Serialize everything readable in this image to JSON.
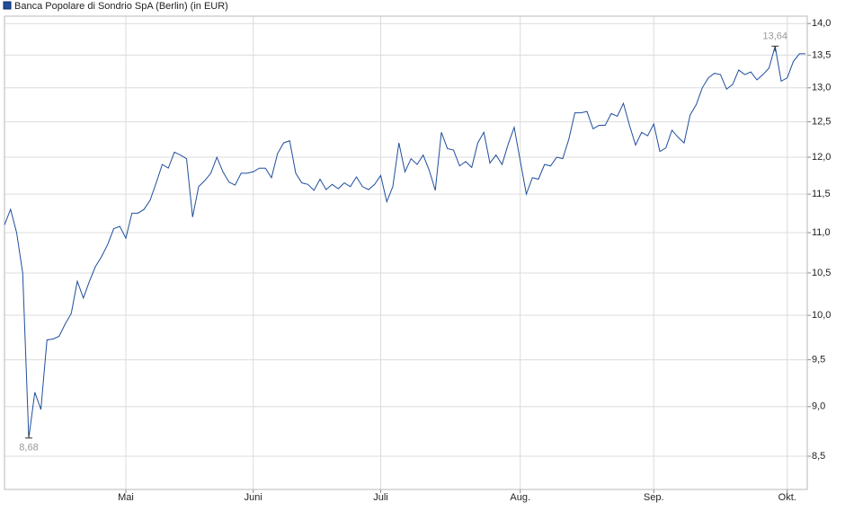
{
  "chart_data": {
    "type": "line",
    "log_scale": true,
    "grid": true,
    "categories": [
      null,
      null,
      null,
      null,
      null,
      null,
      null,
      null,
      null,
      null,
      null,
      null,
      null,
      null,
      null,
      null,
      null,
      null,
      null,
      null,
      "Mai",
      null,
      null,
      null,
      null,
      null,
      null,
      null,
      null,
      null,
      null,
      null,
      null,
      null,
      null,
      null,
      null,
      null,
      null,
      null,
      null,
      "Juni",
      null,
      null,
      null,
      null,
      null,
      null,
      null,
      null,
      null,
      null,
      null,
      null,
      null,
      null,
      null,
      null,
      null,
      null,
      null,
      null,
      "Juli",
      null,
      null,
      null,
      null,
      null,
      null,
      null,
      null,
      null,
      null,
      null,
      null,
      null,
      null,
      null,
      null,
      null,
      null,
      null,
      null,
      null,
      null,
      "Aug.",
      null,
      null,
      null,
      null,
      null,
      null,
      null,
      null,
      null,
      null,
      null,
      null,
      null,
      null,
      null,
      null,
      null,
      null,
      null,
      null,
      null,
      "Sep.",
      null,
      null,
      null,
      null,
      null,
      null,
      null,
      null,
      null,
      null,
      null,
      null,
      null,
      null,
      null,
      null,
      null,
      null,
      null,
      null,
      null,
      "Okt.",
      null,
      null,
      null
    ],
    "series": [
      {
        "name": "Banca Popolare di Sondrio SpA (Berlin) (in EUR)",
        "color": "#1f4e9c",
        "values": [
          11.1,
          11.3,
          11.0,
          10.5,
          8.68,
          9.15,
          8.97,
          9.72,
          9.73,
          9.76,
          9.9,
          10.02,
          10.4,
          10.2,
          10.4,
          10.58,
          10.7,
          10.85,
          11.05,
          11.08,
          10.93,
          11.25,
          11.25,
          11.3,
          11.42,
          11.65,
          11.9,
          11.85,
          12.07,
          12.03,
          11.98,
          11.2,
          11.6,
          11.68,
          11.78,
          12.0,
          11.8,
          11.66,
          11.62,
          11.78,
          11.78,
          11.8,
          11.85,
          11.85,
          11.72,
          12.05,
          12.2,
          12.23,
          11.78,
          11.65,
          11.63,
          11.55,
          11.7,
          11.56,
          11.63,
          11.57,
          11.65,
          11.6,
          11.73,
          11.6,
          11.56,
          11.63,
          11.75,
          11.4,
          11.6,
          12.2,
          11.8,
          11.98,
          11.9,
          12.03,
          11.82,
          11.55,
          12.35,
          12.12,
          12.1,
          11.88,
          11.94,
          11.86,
          12.2,
          12.35,
          11.92,
          12.03,
          11.9,
          12.18,
          12.42,
          11.95,
          11.5,
          11.72,
          11.7,
          11.9,
          11.88,
          12.0,
          11.98,
          12.25,
          12.63,
          12.63,
          12.65,
          12.4,
          12.45,
          12.45,
          12.62,
          12.58,
          12.77,
          12.45,
          12.17,
          12.35,
          12.3,
          12.47,
          12.08,
          12.13,
          12.38,
          12.28,
          12.2,
          12.6,
          12.75,
          13.0,
          13.15,
          13.22,
          13.2,
          12.98,
          13.05,
          13.27,
          13.2,
          13.24,
          13.12,
          13.2,
          13.3,
          13.64,
          13.1,
          13.15,
          13.4,
          13.52,
          13.52
        ],
        "value_labels": [
          null,
          null,
          null,
          null,
          "8,68",
          null,
          null,
          null,
          null,
          null,
          null,
          null,
          null,
          null,
          null,
          null,
          null,
          null,
          null,
          null,
          null,
          null,
          null,
          null,
          null,
          null,
          null,
          null,
          null,
          null,
          null,
          null,
          null,
          null,
          null,
          null,
          null,
          null,
          null,
          null,
          null,
          null,
          null,
          null,
          null,
          null,
          null,
          null,
          null,
          null,
          null,
          null,
          null,
          null,
          null,
          null,
          null,
          null,
          null,
          null,
          null,
          null,
          null,
          null,
          null,
          null,
          null,
          null,
          null,
          null,
          null,
          null,
          null,
          null,
          null,
          null,
          null,
          null,
          null,
          null,
          null,
          null,
          null,
          null,
          null,
          null,
          null,
          null,
          null,
          null,
          null,
          null,
          null,
          null,
          null,
          null,
          null,
          null,
          null,
          null,
          null,
          null,
          null,
          null,
          null,
          null,
          null,
          null,
          null,
          null,
          null,
          null,
          null,
          null,
          null,
          null,
          null,
          null,
          null,
          null,
          null,
          null,
          null,
          null,
          null,
          null,
          null,
          "13,64",
          null,
          null,
          null,
          null,
          null
        ]
      }
    ],
    "ylim": [
      8.18,
      14.12
    ],
    "yticks": [
      {
        "value": 8.5,
        "label": "8,5"
      },
      {
        "value": 9,
        "label": "9,0"
      },
      {
        "value": 9.5,
        "label": "9,5"
      },
      {
        "value": 10,
        "label": "10,0"
      },
      {
        "value": 10.5,
        "label": "10,5"
      },
      {
        "value": 11,
        "label": "11,0"
      },
      {
        "value": 11.5,
        "label": "11,5"
      },
      {
        "value": 12,
        "label": "12,0"
      },
      {
        "value": 12.5,
        "label": "12,5"
      },
      {
        "value": 13,
        "label": "13,0"
      },
      {
        "value": 13.5,
        "label": "13,5"
      },
      {
        "value": 14,
        "label": "14,0"
      }
    ]
  }
}
